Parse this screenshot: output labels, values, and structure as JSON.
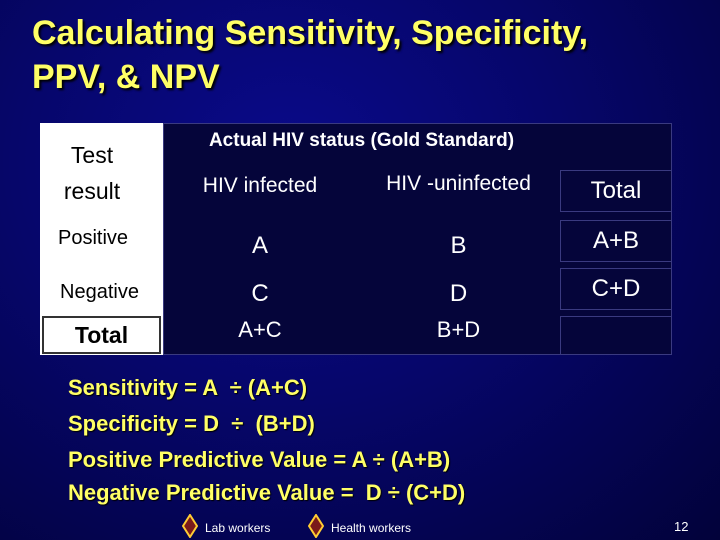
{
  "title": {
    "lines": [
      "Calculating Sensitivity, Specificity,",
      "PPV, & NPV"
    ]
  },
  "table": {
    "corner": "Test result",
    "group_header": "Actual HIV status (Gold Standard)",
    "columns": [
      "HIV infected",
      "HIV -uninfected",
      "Total"
    ],
    "rows": [
      [
        "Positive",
        "A",
        "B",
        "A+B"
      ],
      [
        "Negative",
        "C",
        "D",
        "C+D"
      ],
      [
        "Total",
        "A+C",
        "B+D"
      ]
    ]
  },
  "formulas": [
    "Sensitivity = A  ÷ (A+C)",
    "Specificity = D  ÷  (B+D)",
    "Positive Predictive Value = A ÷ (A+B)",
    "Negative Predictive Value =  D ÷ (C+D)"
  ],
  "footer": {
    "legend": [
      "Lab workers",
      "Health workers"
    ],
    "page_number": "12"
  }
}
